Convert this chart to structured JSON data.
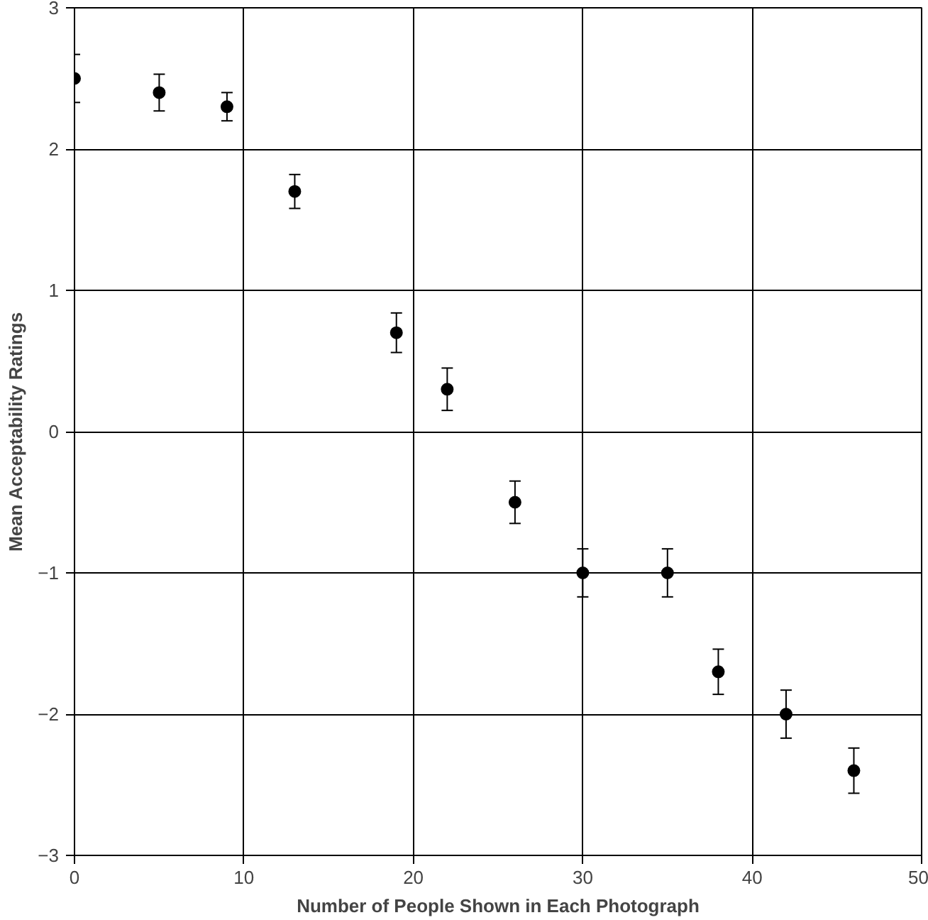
{
  "chart_data": {
    "type": "scatter",
    "xlabel": "Number of People Shown in Each Photograph",
    "ylabel": "Mean Acceptability Ratings",
    "x": [
      0,
      5,
      9,
      13,
      19,
      22,
      26,
      30,
      35,
      38,
      42,
      46
    ],
    "values": [
      2.5,
      2.4,
      2.3,
      1.7,
      0.7,
      0.3,
      -0.5,
      -1,
      -1,
      -1.7,
      -2,
      -2.4
    ],
    "errors": [
      0.17,
      0.13,
      0.1,
      0.12,
      0.14,
      0.15,
      0.15,
      0.17,
      0.17,
      0.16,
      0.17,
      0.16
    ],
    "color": "#000000",
    "marker": "circle",
    "xlim": [
      0,
      50
    ],
    "xticks": [
      0,
      10,
      20,
      30,
      40,
      50
    ],
    "ylim": [
      -3,
      3
    ],
    "yticks": [
      -3,
      -2,
      -1,
      0,
      1,
      2,
      3
    ],
    "grid": true
  }
}
